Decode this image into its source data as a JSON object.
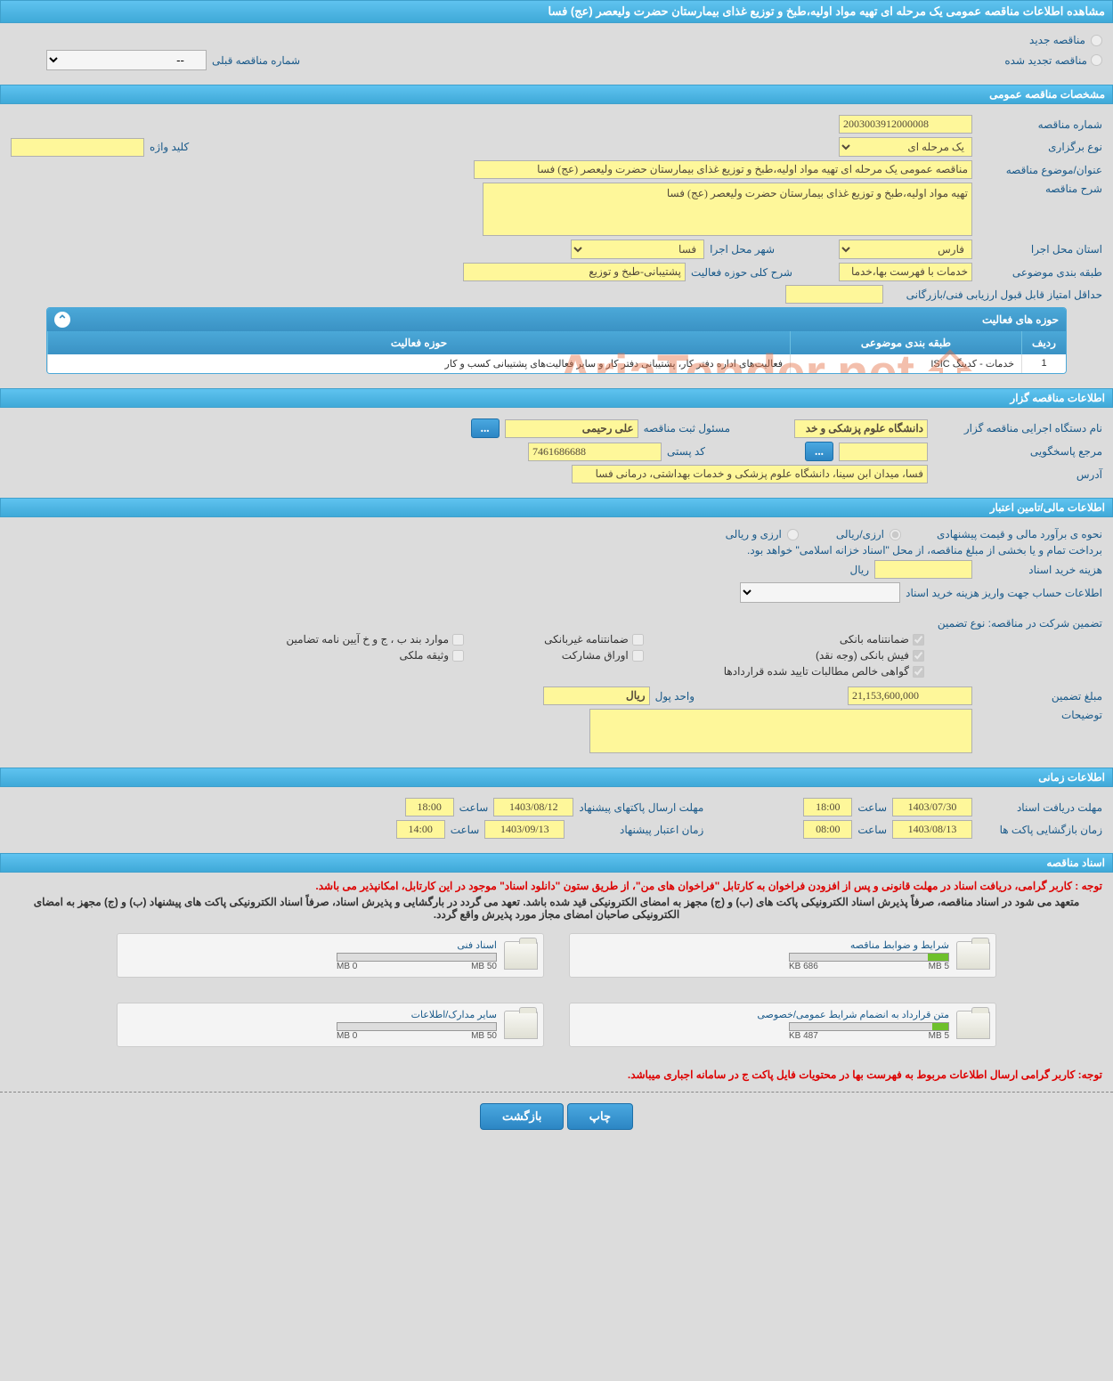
{
  "colors": {
    "header_grad_top": "#5fc3f0",
    "header_grad_bot": "#3fa9d8",
    "yellow_bg": "#fef79a",
    "page_bg": "#dcdcdc",
    "label_color": "#1a5a8a",
    "red_note": "#d00",
    "progress_green": "#6ec02c"
  },
  "page_title": "مشاهده اطلاعات مناقصه عمومی یک مرحله ای تهیه مواد اولیه،طبخ و توزیع غذای بیمارستان حضرت ولیعصر (عج) فسا",
  "top_radios": {
    "new_label": "مناقصه جدید",
    "renewed_label": "مناقصه تجدید شده",
    "prev_num_label": "شماره مناقصه قبلی",
    "prev_num_value": "--"
  },
  "sections": {
    "general": "مشخصات مناقصه عمومی",
    "organizer": "اطلاعات مناقصه گزار",
    "financial": "اطلاعات مالی/تامین اعتبار",
    "timing": "اطلاعات زمانی",
    "documents": "اسناد مناقصه"
  },
  "general": {
    "tender_no_label": "شماره مناقصه",
    "tender_no": "2003003912000008",
    "hold_type_label": "نوع برگزاری",
    "hold_type": "یک مرحله ای",
    "keyword_label": "کلید واژه",
    "keyword": "",
    "subject_label": "عنوان/موضوع مناقصه",
    "subject": "مناقصه عمومی یک مرحله ای تهیه مواد اولیه،طبخ و توزیع غذای بیمارستان حضرت ولیعصر (عج) فسا",
    "desc_label": "شرح مناقصه",
    "desc": "تهیه مواد اولیه،طبخ و توزیع غذای بیمارستان حضرت ولیعصر (عج) فسا",
    "province_label": "استان محل اجرا",
    "province": "فارس",
    "city_label": "شهر محل اجرا",
    "city": "فسا",
    "category_label": "طبقه بندی موضوعی",
    "category": "خدمات با فهرست بها،خدما",
    "activity_scope_label": "شرح کلی حوزه فعالیت",
    "activity_scope": "پشتیبانی-طبخ و توزیع",
    "min_score_label": "حداقل امتیاز قابل قبول ارزیابی فنی/بازرگانی",
    "min_score": ""
  },
  "activity_panel": {
    "title": "حوزه های فعالیت",
    "col_row": "ردیف",
    "col_class": "طبقه بندی موضوعی",
    "col_scope": "حوزه فعالیت",
    "rows": [
      {
        "n": "1",
        "class": "خدمات - کدینگ ISIC",
        "scope": "فعالیت‌های  اداره دفتر کار، پشتیبانی دفتر کار و سایر فعالیت‌های پشتیبانی کسب و کار"
      }
    ]
  },
  "organizer": {
    "exec_label": "نام دستگاه اجرایی مناقصه گزار",
    "exec_name": "دانشگاه علوم پزشکی و خد",
    "reg_officer_label": "مسئول ثبت مناقصه",
    "reg_officer": "علی رحیمی",
    "responder_label": "مرجع پاسخگویی",
    "responder": "",
    "postal_label": "کد پستی",
    "postal": "7461686688",
    "address_label": "آدرس",
    "address": "فسا، میدان ابن سینا، دانشگاه علوم پزشکی و خدمات بهداشتی، درمانی فسا"
  },
  "financial": {
    "pricing_method_label": "نحوه ی برآورد مالی و قیمت پیشنهادی",
    "opt_rial": "ارزی/ریالی",
    "opt_currency": "ارزی و ریالی",
    "treasury_note": "برداخت تمام و یا بخشی از مبلغ مناقصه، از محل \"اسناد خزانه اسلامی\" خواهد بود.",
    "doc_fee_label": "هزینه خرید اسناد",
    "doc_fee": "",
    "rial_unit": "ریال",
    "account_info_label": "اطلاعات حساب جهت واریز هزینه خرید اسناد",
    "guarantee_label": "تضمین شرکت در مناقصه:    نوع تضمین",
    "g1": "ضمانتنامه بانکی",
    "g2": "فیش بانکی (وجه نقد)",
    "g3": "گواهی خالص مطالبات تایید شده قراردادها",
    "g4": "ضمانتنامه غیربانکی",
    "g5": "اوراق مشارکت",
    "g6": "موارد بند ب ، ج و خ آیین نامه تضامین",
    "g7": "وثیقه ملکی",
    "amount_label": "مبلغ تضمین",
    "amount": "21,153,600,000",
    "unit_label": "واحد پول",
    "unit": "ریال",
    "notes_label": "توضیحات",
    "notes": ""
  },
  "timing": {
    "deadline_docs_label": "مهلت دریافت اسناد",
    "deadline_docs_date": "1403/07/30",
    "deadline_docs_time": "18:00",
    "send_deadline_label": "مهلت ارسال پاکتهای پیشنهاد",
    "send_deadline_date": "1403/08/12",
    "send_deadline_time": "18:00",
    "open_label": "زمان بازگشایی پاکت ها",
    "open_date": "1403/08/13",
    "open_time": "08:00",
    "validity_label": "زمان اعتبار پیشنهاد",
    "validity_date": "1403/09/13",
    "validity_time": "14:00",
    "time_word": "ساعت"
  },
  "docs": {
    "note1": "توجه : کاربر گرامی، دریافت اسناد در مهلت قانونی و پس از افزودن فراخوان به کارتابل \"فراخوان های من\"، از طریق ستون \"دانلود اسناد\" موجود در این کارتابل، امکانپذیر می باشد.",
    "note2": "متعهد می شود در اسناد مناقصه، صرفاً پذیرش اسناد الکترونیکی پاکت های (ب) و (ج) مجهز به امضای الکترونیکی قید شده باشد. تعهد می گردد در بارگشایی و پذیرش اسناد، صرفاً اسناد الکترونیکی پاکت های پیشنهاد (ب) و (ج) مجهز به امضای الکترونیکی صاحبان امضای مجاز مورد پذیرش واقع گردد.",
    "files": [
      {
        "name": "شرایط و ضوابط مناقصه",
        "size": "686 KB",
        "max": "5 MB",
        "pct": 13
      },
      {
        "name": "اسناد فنی",
        "size": "0 MB",
        "max": "50 MB",
        "pct": 0
      },
      {
        "name": "متن قرارداد به انضمام شرایط عمومی/خصوصی",
        "size": "487 KB",
        "max": "5 MB",
        "pct": 10
      },
      {
        "name": "سایر مدارک/اطلاعات",
        "size": "0 MB",
        "max": "50 MB",
        "pct": 0
      }
    ],
    "bottom_note": "توجه: کاربر گرامی ارسال اطلاعات مربوط به فهرست بها در محتویات فایل پاکت ج در سامانه اجباری میباشد."
  },
  "buttons": {
    "print": "چاپ",
    "back": "بازگشت",
    "more": "..."
  },
  "watermark": "AriaTender.net"
}
